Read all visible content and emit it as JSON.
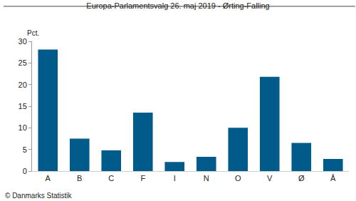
{
  "chart_data": {
    "type": "bar",
    "title": "Europa-Parlamentsvalg 26. maj 2019 - Ørting-Falling",
    "ylabel": "Pct.",
    "annotation": "© Danmarks Statistik",
    "categories": [
      "A",
      "B",
      "C",
      "F",
      "I",
      "N",
      "O",
      "V",
      "Ø",
      "Å"
    ],
    "values": [
      28.1,
      7.5,
      4.8,
      13.5,
      2.1,
      3.3,
      10.0,
      21.8,
      6.5,
      2.8
    ],
    "color": "#005b8a",
    "ylim": [
      0,
      30
    ],
    "yticks": [
      0,
      5,
      10,
      15,
      20,
      25,
      30
    ],
    "grid": false
  }
}
